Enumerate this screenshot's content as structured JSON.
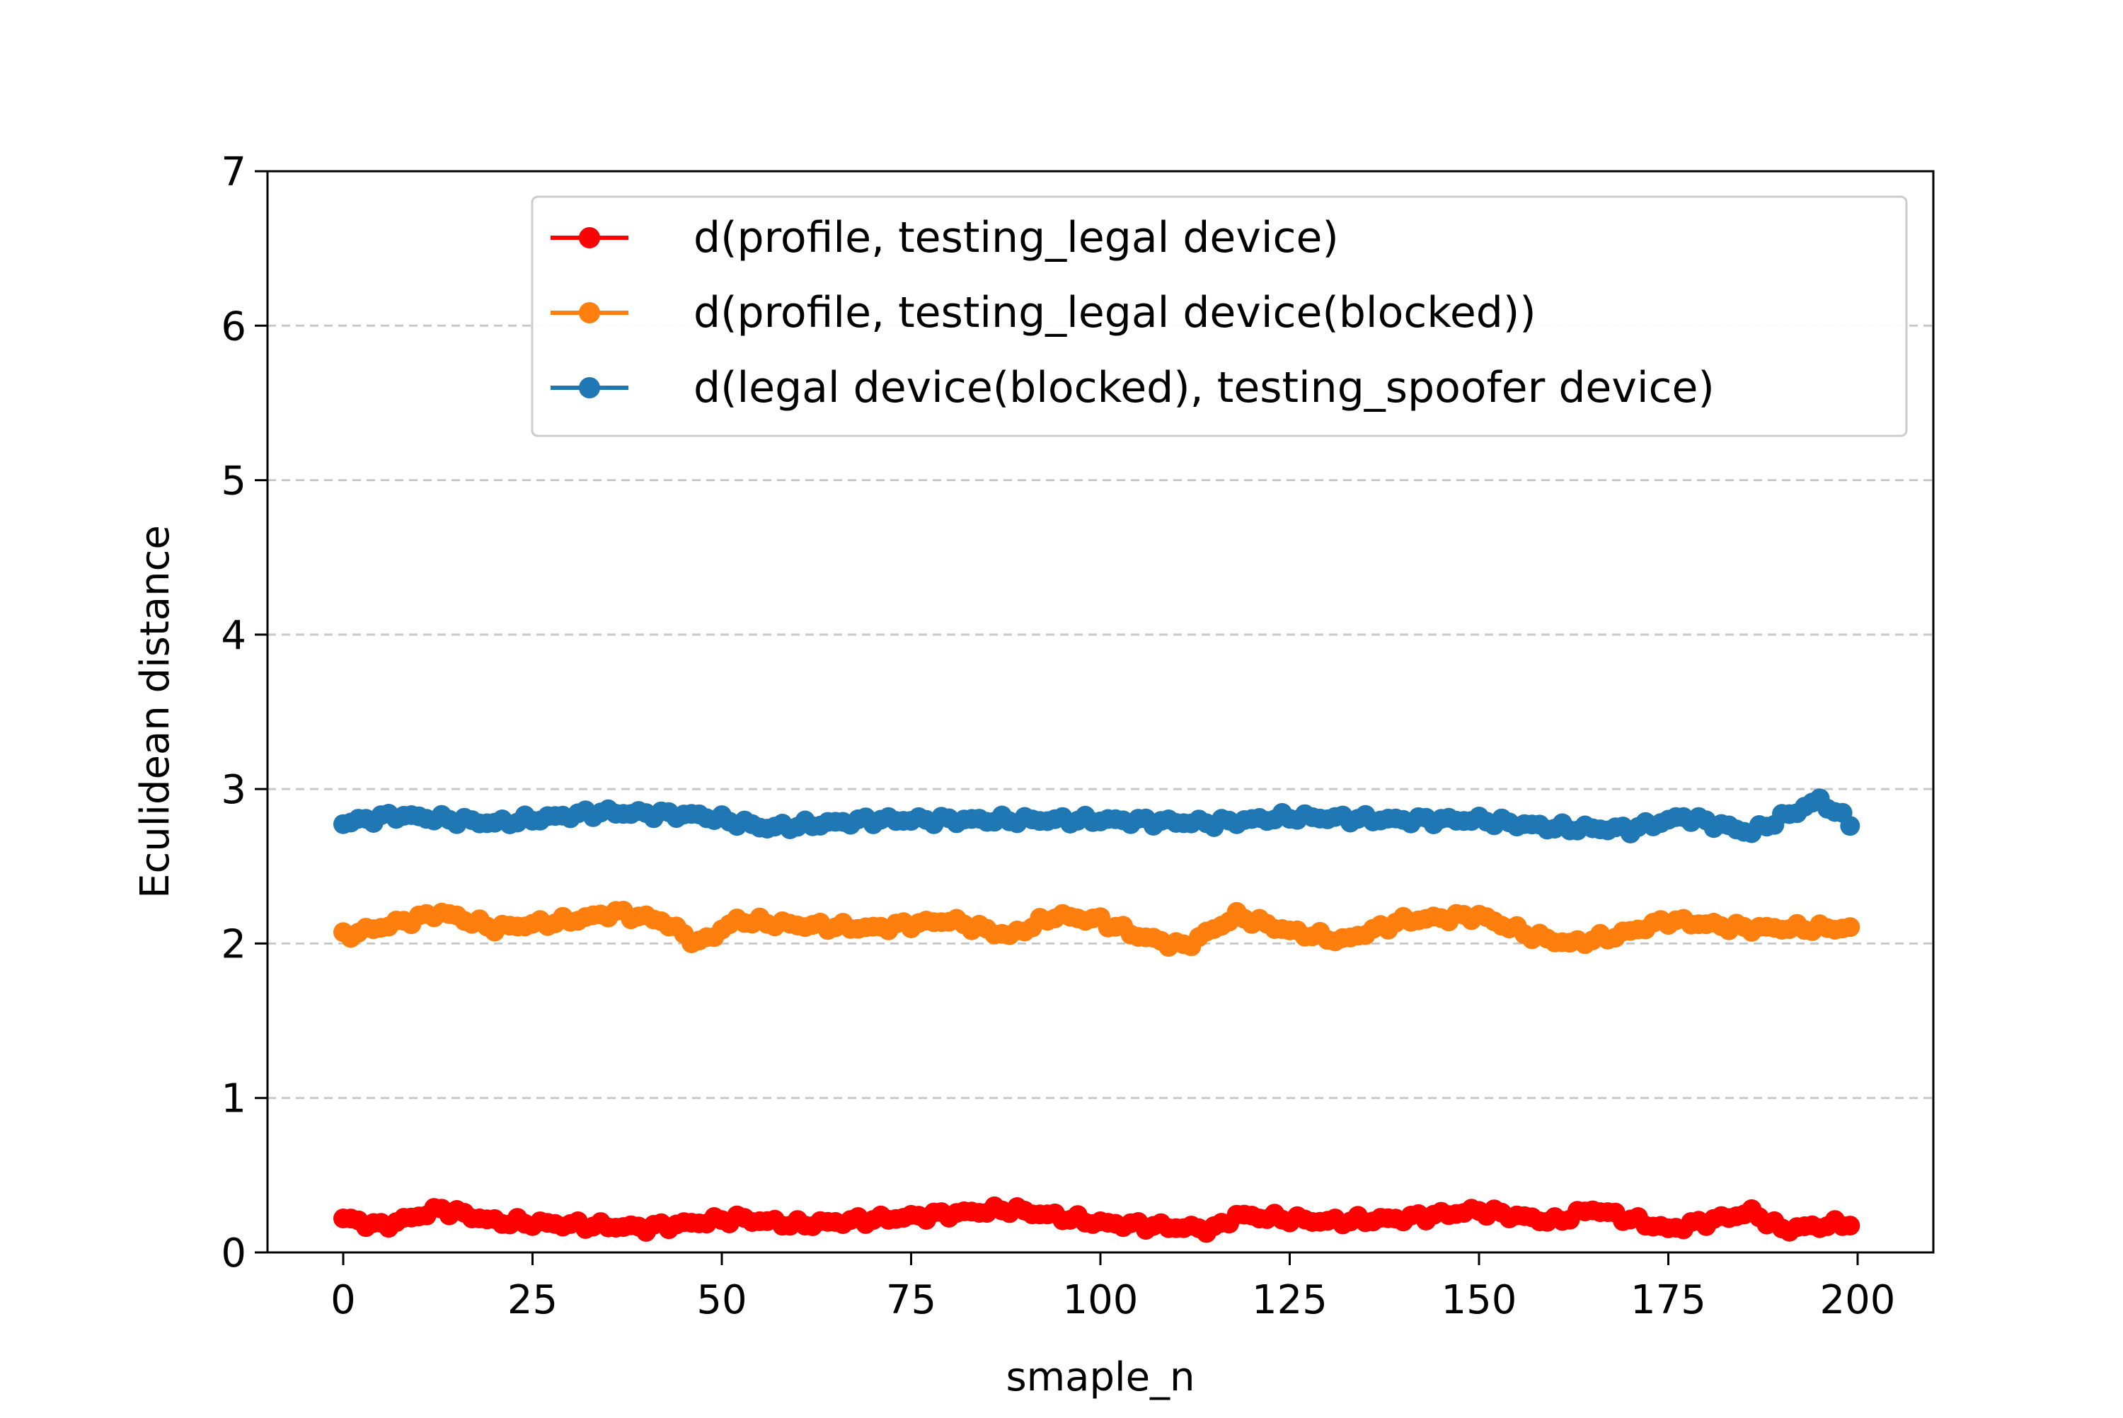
{
  "chart_data": {
    "type": "line",
    "title": "",
    "xlabel": "smaple_n",
    "ylabel": "Eculidean distance",
    "xlim": [
      -10,
      210
    ],
    "ylim": [
      0,
      7
    ],
    "xticks": [
      0,
      25,
      50,
      75,
      100,
      125,
      150,
      175,
      200
    ],
    "yticks": [
      0,
      1,
      2,
      3,
      4,
      5,
      6,
      7
    ],
    "grid": {
      "axis": "y",
      "style": "dashed"
    },
    "legend_position": "top-right",
    "marker": "circle",
    "series": [
      {
        "name": "d(profile, testing_legal device)",
        "color": "#ff0000",
        "base": 0.2,
        "x_range": [
          0,
          199
        ],
        "points": [
          [
            0,
            0.22
          ],
          [
            5,
            0.17
          ],
          [
            13,
            0.28
          ],
          [
            20,
            0.2
          ],
          [
            30,
            0.18
          ],
          [
            40,
            0.16
          ],
          [
            52,
            0.22
          ],
          [
            60,
            0.18
          ],
          [
            75,
            0.23
          ],
          [
            88,
            0.28
          ],
          [
            100,
            0.19
          ],
          [
            115,
            0.15
          ],
          [
            118,
            0.24
          ],
          [
            130,
            0.2
          ],
          [
            140,
            0.22
          ],
          [
            150,
            0.27
          ],
          [
            160,
            0.2
          ],
          [
            165,
            0.28
          ],
          [
            175,
            0.15
          ],
          [
            186,
            0.26
          ],
          [
            190,
            0.15
          ],
          [
            199,
            0.19
          ]
        ]
      },
      {
        "name": "d(profile, testing_legal device(blocked))",
        "color": "#ff7f0e",
        "base": 2.1,
        "x_range": [
          0,
          199
        ],
        "points": [
          [
            0,
            2.05
          ],
          [
            13,
            2.2
          ],
          [
            20,
            2.1
          ],
          [
            30,
            2.15
          ],
          [
            36,
            2.2
          ],
          [
            42,
            2.15
          ],
          [
            47,
            2.0
          ],
          [
            52,
            2.15
          ],
          [
            60,
            2.12
          ],
          [
            70,
            2.1
          ],
          [
            80,
            2.15
          ],
          [
            88,
            2.05
          ],
          [
            94,
            2.18
          ],
          [
            100,
            2.15
          ],
          [
            105,
            2.05
          ],
          [
            111,
            1.98
          ],
          [
            118,
            2.18
          ],
          [
            125,
            2.08
          ],
          [
            132,
            2.02
          ],
          [
            140,
            2.15
          ],
          [
            150,
            2.18
          ],
          [
            157,
            2.05
          ],
          [
            162,
            2.0
          ],
          [
            168,
            2.05
          ],
          [
            175,
            2.15
          ],
          [
            185,
            2.1
          ],
          [
            199,
            2.1
          ]
        ]
      },
      {
        "name": "d(legal device(blocked), testing_spoofer device)",
        "color": "#1f77b4",
        "base": 2.78,
        "x_range": [
          0,
          199
        ],
        "points": [
          [
            0,
            2.78
          ],
          [
            7,
            2.83
          ],
          [
            20,
            2.78
          ],
          [
            34,
            2.85
          ],
          [
            47,
            2.83
          ],
          [
            56,
            2.75
          ],
          [
            70,
            2.8
          ],
          [
            80,
            2.8
          ],
          [
            100,
            2.8
          ],
          [
            115,
            2.78
          ],
          [
            125,
            2.82
          ],
          [
            140,
            2.8
          ],
          [
            150,
            2.8
          ],
          [
            160,
            2.75
          ],
          [
            170,
            2.74
          ],
          [
            177,
            2.82
          ],
          [
            186,
            2.72
          ],
          [
            195,
            2.93
          ],
          [
            199,
            2.78
          ]
        ]
      }
    ]
  }
}
